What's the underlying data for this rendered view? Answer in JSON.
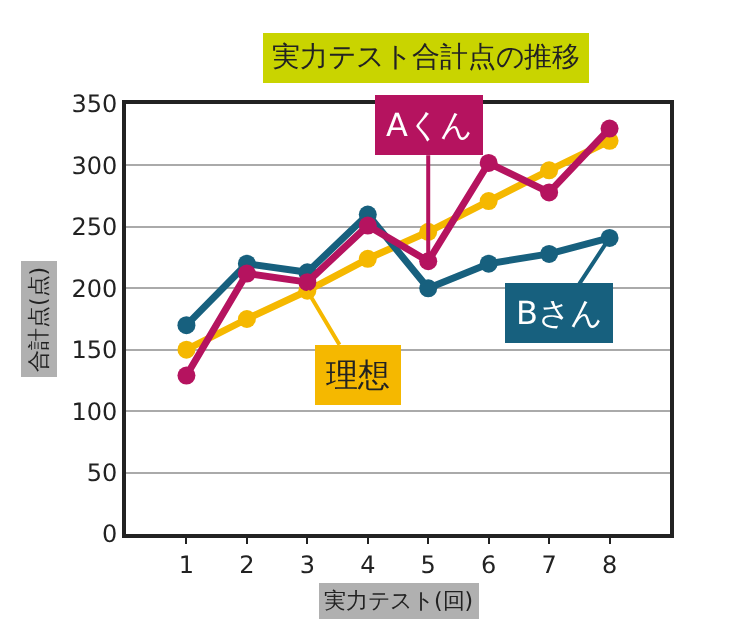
{
  "chart_data": {
    "type": "line",
    "title": "実力テスト合計点の推移",
    "xlabel": "実力テスト(回)",
    "ylabel": "合計点(点)",
    "x": [
      1,
      2,
      3,
      4,
      5,
      6,
      7,
      8
    ],
    "series": [
      {
        "name": "Aくん",
        "color": "#b5135f",
        "values": [
          129,
          212,
          205,
          251,
          222,
          302,
          278,
          330
        ]
      },
      {
        "name": "Bさん",
        "color": "#17607e",
        "values": [
          170,
          220,
          213,
          260,
          200,
          220,
          228,
          241
        ]
      },
      {
        "name": "理想",
        "color": "#f5b800",
        "values": [
          150,
          175,
          198,
          224,
          246,
          271,
          296,
          320
        ]
      }
    ],
    "xlim": [
      0,
      9
    ],
    "xticks": [
      1,
      2,
      3,
      4,
      5,
      6,
      7,
      8
    ],
    "ylim": [
      0,
      350
    ],
    "yticks": [
      0,
      50,
      100,
      150,
      200,
      250,
      300,
      350
    ],
    "grid": "y",
    "marker": "circle",
    "line_style": "solid",
    "legend": "right"
  }
}
